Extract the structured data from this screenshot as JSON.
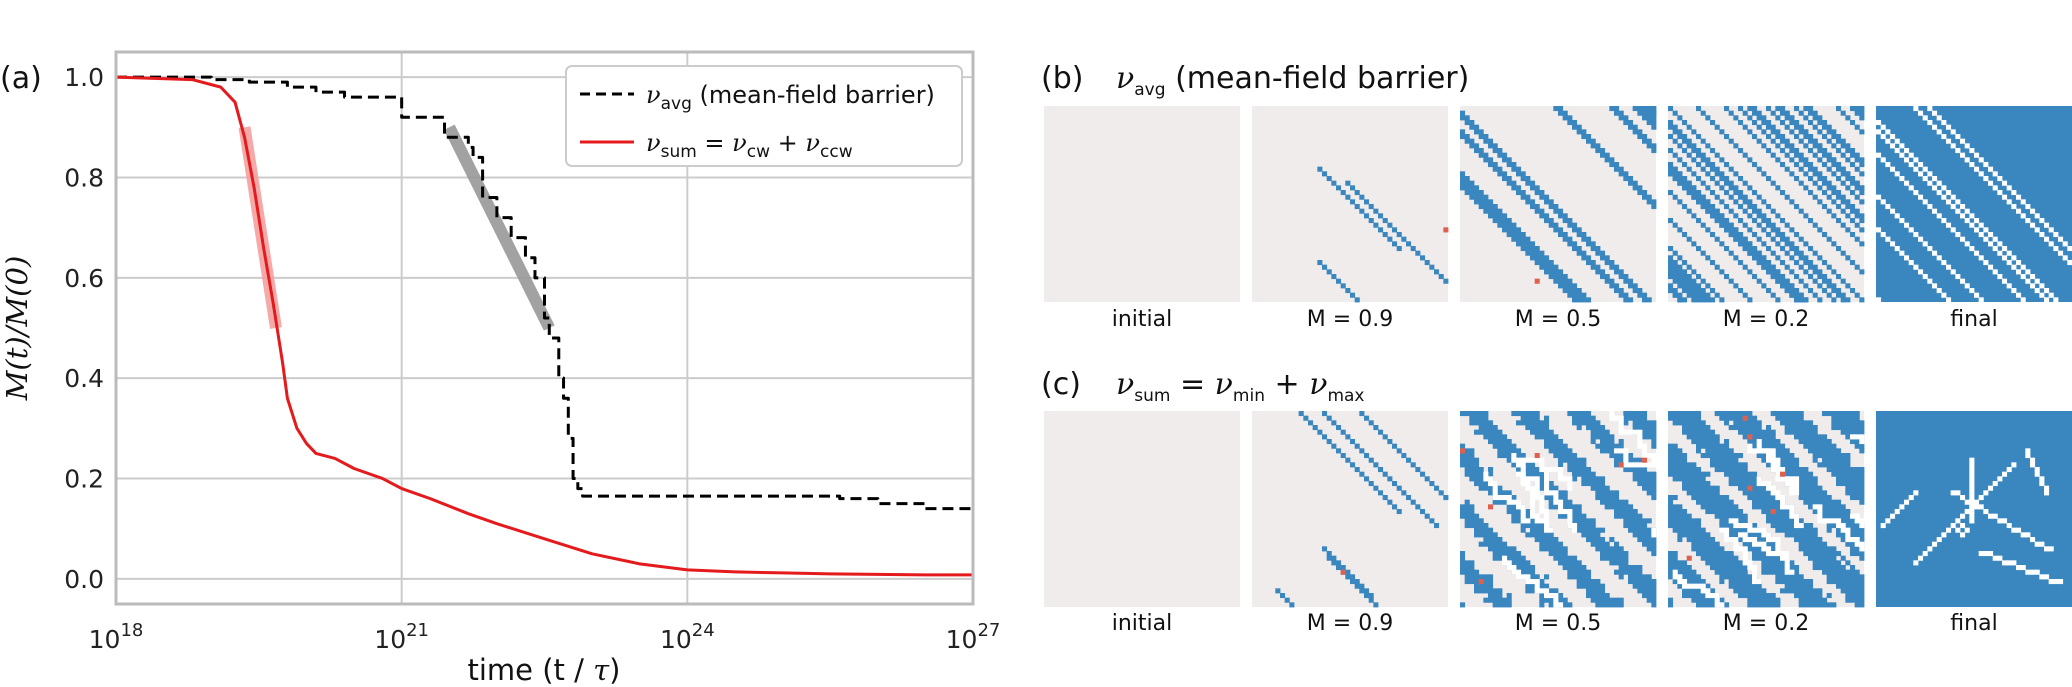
{
  "chart_data": [
    {
      "type": "line",
      "panel_label": "(a)",
      "xlabel_text": "time (t / ",
      "xlabel_tau": "τ",
      "xlabel_close": ")",
      "ylabel_text": "M(t)/M(0)",
      "xscale": "log",
      "xlim_exponents": [
        18,
        27
      ],
      "ylim": [
        -0.05,
        1.05
      ],
      "x_tick_base": "10",
      "x_tick_exponents": [
        "18",
        "21",
        "24",
        "27"
      ],
      "y_ticks": [
        "0.0",
        "0.2",
        "0.4",
        "0.6",
        "0.8",
        "1.0"
      ],
      "grid": true,
      "legend_position": "top-right",
      "series": [
        {
          "name": "ν_avg (mean-field barrier)",
          "color": "#000000",
          "dash": "dashed",
          "step": true,
          "x_log10": [
            18.0,
            19.0,
            19.4,
            19.8,
            20.1,
            20.4,
            20.5,
            20.6,
            20.8,
            21.0,
            21.05,
            21.4,
            21.45,
            21.7,
            21.75,
            21.85,
            22.0,
            22.15,
            22.3,
            22.4,
            22.5,
            22.55,
            22.65,
            22.7,
            22.75,
            22.8,
            22.85,
            22.9,
            23.0,
            23.5,
            24.0,
            25.0,
            25.6,
            26.0,
            26.5,
            27.0
          ],
          "y": [
            1.0,
            0.995,
            0.99,
            0.98,
            0.97,
            0.96,
            0.96,
            0.96,
            0.96,
            0.92,
            0.92,
            0.92,
            0.88,
            0.86,
            0.84,
            0.76,
            0.72,
            0.68,
            0.64,
            0.6,
            0.52,
            0.48,
            0.4,
            0.36,
            0.28,
            0.2,
            0.18,
            0.165,
            0.165,
            0.165,
            0.165,
            0.165,
            0.16,
            0.15,
            0.14,
            0.135
          ]
        },
        {
          "name": "ν_sum = ν_cw + ν_ccw",
          "color": "#e41a1c",
          "dash": "solid",
          "step": false,
          "x_log10": [
            18.0,
            18.8,
            19.1,
            19.25,
            19.35,
            19.45,
            19.55,
            19.65,
            19.75,
            19.8,
            19.9,
            20.0,
            20.1,
            20.3,
            20.5,
            20.8,
            21.0,
            21.3,
            21.7,
            22.0,
            22.5,
            23.0,
            23.5,
            24.0,
            24.5,
            25.0,
            25.5,
            26.0,
            26.5,
            27.0
          ],
          "y": [
            1.0,
            0.995,
            0.98,
            0.95,
            0.88,
            0.78,
            0.66,
            0.55,
            0.43,
            0.36,
            0.3,
            0.27,
            0.25,
            0.24,
            0.22,
            0.2,
            0.18,
            0.16,
            0.13,
            0.11,
            0.08,
            0.05,
            0.03,
            0.018,
            0.014,
            0.012,
            0.01,
            0.009,
            0.008,
            0.008
          ]
        }
      ],
      "fit_segments": [
        {
          "color": "#f4a0a0",
          "x_log10": [
            19.35,
            19.68
          ],
          "y": [
            0.9,
            0.5
          ]
        },
        {
          "color": "#999999",
          "x_log10": [
            21.5,
            22.55
          ],
          "y": [
            0.9,
            0.5
          ]
        }
      ]
    },
    {
      "type": "heatmap",
      "panel_label": "(b)",
      "title_nu": "ν",
      "title_sub": "avg",
      "title_rest": " (mean-field barrier)",
      "frames": [
        "initial",
        "M = 0.9",
        "M = 0.5",
        "M = 0.2",
        "final"
      ],
      "blue_fraction": [
        0.0,
        0.1,
        0.5,
        0.8,
        1.0
      ]
    },
    {
      "type": "heatmap",
      "panel_label": "(c)",
      "title_nu": "ν",
      "title_sub1": "sum",
      "title_eq": " = ",
      "title_sub2": "min",
      "title_plus": " + ",
      "title_sub3": "max",
      "frames": [
        "initial",
        "M = 0.9",
        "M = 0.5",
        "M = 0.2",
        "final"
      ],
      "blue_fraction": [
        0.0,
        0.1,
        0.5,
        0.8,
        1.0
      ]
    }
  ],
  "legend": {
    "entry1_nu": "ν",
    "entry1_sub": "avg",
    "entry1_rest": " (mean-field barrier)",
    "entry2_nu": "ν",
    "entry2_sub": "sum",
    "entry2_eq": " = ",
    "entry2_nu2": "ν",
    "entry2_sub2": "cw",
    "entry2_plus": " + ",
    "entry2_nu3": "ν",
    "entry2_sub3": "ccw"
  },
  "colors": {
    "blue": "#3a87c0",
    "light": "#f0eceb",
    "white_line": "#ffffff",
    "red_dot": "#e06050",
    "grid": "#cccccc",
    "axis_border": "#bbbbbb"
  }
}
